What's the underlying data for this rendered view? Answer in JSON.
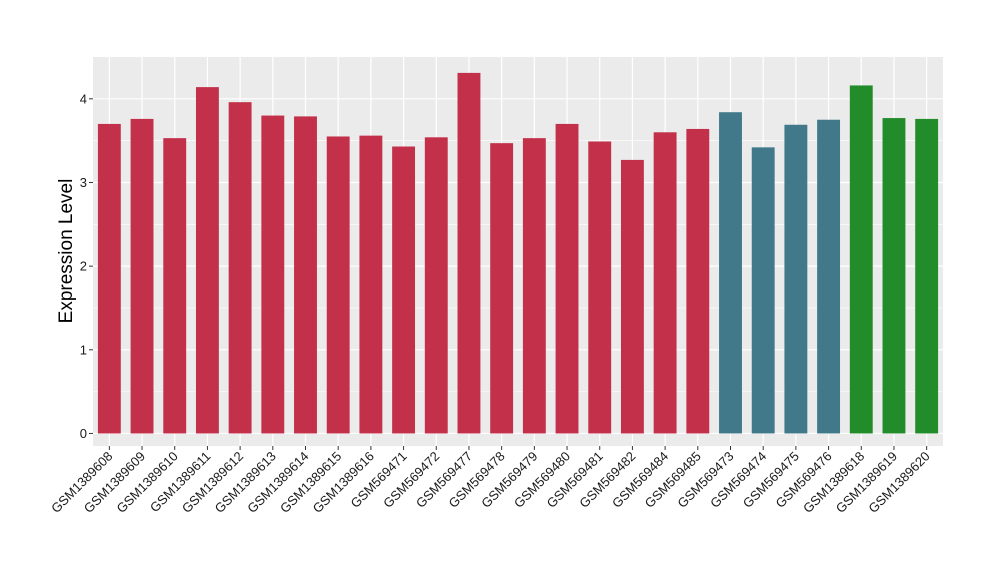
{
  "chart_data": {
    "type": "bar",
    "title": "",
    "xlabel": "",
    "ylabel": "Expression Level",
    "ylim": [
      -0.15,
      4.5
    ],
    "yticks": [
      0,
      1,
      2,
      3,
      4
    ],
    "grid": true,
    "legend": "none",
    "categories": [
      "GSM1389608",
      "GSM1389609",
      "GSM1389610",
      "GSM1389611",
      "GSM1389612",
      "GSM1389613",
      "GSM1389614",
      "GSM1389615",
      "GSM1389616",
      "GSM569471",
      "GSM569472",
      "GSM569477",
      "GSM569478",
      "GSM569479",
      "GSM569480",
      "GSM569481",
      "GSM569482",
      "GSM569484",
      "GSM569485",
      "GSM569473",
      "GSM569474",
      "GSM569475",
      "GSM569476",
      "GSM1389618",
      "GSM1389619",
      "GSM1389620"
    ],
    "values": [
      3.7,
      3.76,
      3.53,
      4.14,
      3.96,
      3.8,
      3.79,
      3.55,
      3.56,
      3.43,
      3.54,
      4.31,
      3.47,
      3.53,
      3.7,
      3.49,
      3.27,
      3.6,
      3.64,
      3.84,
      3.42,
      3.69,
      3.75,
      4.16,
      3.77,
      3.76
    ],
    "bar_colors": [
      "#c3304a",
      "#c3304a",
      "#c3304a",
      "#c3304a",
      "#c3304a",
      "#c3304a",
      "#c3304a",
      "#c3304a",
      "#c3304a",
      "#c3304a",
      "#c3304a",
      "#c3304a",
      "#c3304a",
      "#c3304a",
      "#c3304a",
      "#c3304a",
      "#c3304a",
      "#c3304a",
      "#c3304a",
      "#41788a",
      "#41788a",
      "#41788a",
      "#41788a",
      "#238c2a",
      "#238c2a",
      "#238c2a"
    ],
    "panel_color": "#ebebeb",
    "grid_color": "#ffffff"
  }
}
